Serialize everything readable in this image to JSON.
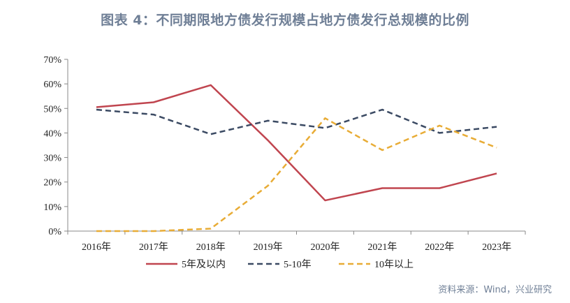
{
  "title": "图表 4：不同期限地方债发行规模占地方债发行总规模的比例",
  "source": "资料来源：Wind，兴业研究",
  "chart_data": {
    "type": "line",
    "categories": [
      "2016年",
      "2017年",
      "2018年",
      "2019年",
      "2020年",
      "2021年",
      "2022年",
      "2023年"
    ],
    "ylim": [
      0,
      70
    ],
    "yticks": [
      "0%",
      "10%",
      "20%",
      "30%",
      "40%",
      "50%",
      "60%",
      "70%"
    ],
    "grid": false,
    "legend_position": "bottom",
    "series": [
      {
        "name": "5年及以内",
        "values": [
          50.5,
          52.5,
          59.5,
          37,
          12.5,
          17.5,
          17.5,
          23.5
        ],
        "color": "#c0454f",
        "style": "solid"
      },
      {
        "name": "5-10年",
        "values": [
          49.5,
          47.5,
          39.5,
          45,
          42,
          49.5,
          40,
          42.5
        ],
        "color": "#3b4a63",
        "style": "dashed"
      },
      {
        "name": "10年以上",
        "values": [
          0,
          0,
          1,
          18.5,
          46,
          33,
          43,
          34
        ],
        "color": "#e8ac36",
        "style": "dashed"
      }
    ]
  }
}
